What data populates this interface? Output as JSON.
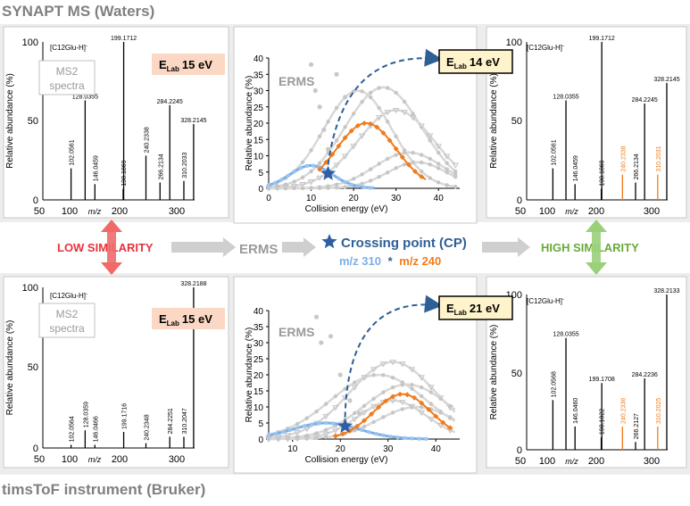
{
  "top_title": "SYNAPT MS (Waters)",
  "bottom_title": "timsToF instrument (Bruker)",
  "colors": {
    "gray_bg": "#ededed",
    "panel_border": "#c8c8c8",
    "orange": "#f07c1c",
    "blue": "#7ab0e8",
    "star": "#2e5fa3",
    "red": "#e8323c",
    "green": "#6aaa3a",
    "elab_pink": "#fbd8c4",
    "elab_yellow": "#fff3cc",
    "dark_blue": "#2e5f95"
  },
  "middle_row": {
    "low_similarity": "LOW SIMILARITY",
    "erms": "ERMS",
    "crossing_point": "Crossing point (CP)",
    "mz_310": "m/z 310",
    "star_sep": "*",
    "mz_240": "m/z 240",
    "high_similarity": "HIGH SIMILARITY"
  },
  "ms2_label": [
    "MS2",
    "spectra"
  ],
  "ylabel_rel": "Relative abundance (%)",
  "xlabel_mz": "m/z",
  "xlabel_ce": "Collision energy (eV)",
  "erms_label": "ERMS",
  "spectra": {
    "top_left": {
      "precursor": "[C12Glu-H]",
      "precursor_sup": "-",
      "elab_prefix": "E",
      "elab_sub": "Lab",
      "elab_value": "15 eV",
      "y_ticks": [
        "100",
        "50",
        "0"
      ],
      "x_ticks": [
        "50",
        "100",
        "200",
        "300"
      ],
      "peaks": [
        {
          "mz": 102.0561,
          "label": "102.0561",
          "rel": 20
        },
        {
          "mz": 128.0355,
          "label": "128.0355",
          "rel": 63
        },
        {
          "mz": 146.0459,
          "label": "146.0459",
          "rel": 10
        },
        {
          "mz": 198.1869,
          "label": "198.1869",
          "rel": 7
        },
        {
          "mz": 199.1712,
          "label": "199.1712",
          "rel": 100
        },
        {
          "mz": 240.2338,
          "label": "240.2338",
          "rel": 28
        },
        {
          "mz": 266.2134,
          "label": "266.2134",
          "rel": 11
        },
        {
          "mz": 284.2245,
          "label": "284.2245",
          "rel": 60
        },
        {
          "mz": 310.2033,
          "label": "310.2033",
          "rel": 12
        },
        {
          "mz": 328.2145,
          "label": "328.2145",
          "rel": 48
        }
      ]
    },
    "top_right": {
      "precursor": "[C12Glu-H]",
      "precursor_sup": "-",
      "y_ticks": [
        "100",
        "50",
        "0"
      ],
      "x_ticks": [
        "50",
        "100",
        "200",
        "300"
      ],
      "peaks": [
        {
          "mz": 102.0561,
          "label": "102.0561",
          "rel": 20
        },
        {
          "mz": 128.0355,
          "label": "128.0355",
          "rel": 63
        },
        {
          "mz": 146.0459,
          "label": "146.0459",
          "rel": 10
        },
        {
          "mz": 198.1869,
          "label": "198.1869",
          "rel": 7
        },
        {
          "mz": 199.1712,
          "label": "199.1712",
          "rel": 100
        },
        {
          "mz": 240.2338,
          "label": "240.2338",
          "rel": 16,
          "orange": true
        },
        {
          "mz": 266.2134,
          "label": "266.2134",
          "rel": 11
        },
        {
          "mz": 284.2245,
          "label": "284.2245",
          "rel": 61
        },
        {
          "mz": 310.2031,
          "label": "310.2031",
          "rel": 16,
          "orange": true
        },
        {
          "mz": 328.2145,
          "label": "328.2145",
          "rel": 74
        }
      ]
    },
    "bottom_left": {
      "precursor": "[C12Glu-H]",
      "precursor_sup": "-",
      "elab_prefix": "E",
      "elab_sub": "Lab",
      "elab_value": "15 eV",
      "y_ticks": [
        "100",
        "50",
        "0"
      ],
      "x_ticks": [
        "50",
        "100",
        "200",
        "300"
      ],
      "peaks": [
        {
          "mz": 102.0564,
          "label": "102.0564",
          "rel": 2
        },
        {
          "mz": 128.0359,
          "label": "128.0359",
          "rel": 11
        },
        {
          "mz": 146.0466,
          "label": "146.0466",
          "rel": 2
        },
        {
          "mz": 199.1716,
          "label": "199.1716",
          "rel": 10
        },
        {
          "mz": 240.2348,
          "label": "240.2348",
          "rel": 3
        },
        {
          "mz": 284.2251,
          "label": "284.2251",
          "rel": 7
        },
        {
          "mz": 310.2047,
          "label": "310.2047",
          "rel": 7
        },
        {
          "mz": 328.2188,
          "label": "328.2188",
          "rel": 100
        }
      ]
    },
    "bottom_right": {
      "precursor": "[C12Glu-H]",
      "precursor_sup": "-",
      "y_ticks": [
        "100",
        "50",
        "0"
      ],
      "x_ticks": [
        "50",
        "100",
        "200",
        "300"
      ],
      "peaks": [
        {
          "mz": 102.0568,
          "label": "102.0568",
          "rel": 32
        },
        {
          "mz": 128.0355,
          "label": "128.0355",
          "rel": 72
        },
        {
          "mz": 146.046,
          "label": "146.0460",
          "rel": 15
        },
        {
          "mz": 198.1022,
          "label": "198.1022",
          "rel": 8
        },
        {
          "mz": 199.1708,
          "label": "199.1708",
          "rel": 43
        },
        {
          "mz": 240.2336,
          "label": "240.2336",
          "rel": 15,
          "orange": true
        },
        {
          "mz": 266.2127,
          "label": "266.2127",
          "rel": 5
        },
        {
          "mz": 284.2236,
          "label": "284.2236",
          "rel": 46
        },
        {
          "mz": 310.2025,
          "label": "310.2025",
          "rel": 15,
          "orange": true
        },
        {
          "mz": 328.2133,
          "label": "328.2133",
          "rel": 100
        }
      ]
    }
  },
  "erms": {
    "top": {
      "elab_prefix": "E",
      "elab_sub": "Lab",
      "elab_value": "14 eV",
      "x_ticks": [
        "0",
        "10",
        "20",
        "30",
        "40"
      ],
      "y_ticks": [
        "0",
        "5",
        "10",
        "15",
        "20",
        "25",
        "30",
        "35",
        "40"
      ],
      "x_range": [
        0,
        45
      ],
      "y_range": [
        0,
        40
      ],
      "cp": {
        "x": 14,
        "y": 4.5
      },
      "blue_curve": {
        "center": 10,
        "width": 5,
        "height": 7
      },
      "orange_curve": {
        "center": 23,
        "width": 7,
        "height": 20,
        "start": 12,
        "end": 37
      },
      "gray_curves": [
        {
          "center": 21,
          "width": 8,
          "height": 30,
          "shape": "dot"
        },
        {
          "center": 27,
          "width": 9,
          "height": 31,
          "shape": "dot"
        },
        {
          "center": 30,
          "width": 9,
          "height": 24,
          "shape": "tri"
        },
        {
          "center": 33,
          "width": 8,
          "height": 11,
          "shape": "dot"
        },
        {
          "center": 35,
          "width": 7,
          "height": 8,
          "shape": "dot"
        }
      ],
      "outlier_points": [
        [
          10,
          38
        ],
        [
          11,
          30
        ],
        [
          12,
          25
        ],
        [
          13,
          18
        ],
        [
          14,
          12
        ],
        [
          16,
          35
        ],
        [
          18,
          28
        ]
      ]
    },
    "bottom": {
      "elab_prefix": "E",
      "elab_sub": "Lab",
      "elab_value": "21 eV",
      "x_ticks": [
        "10",
        "20",
        "30",
        "40"
      ],
      "y_ticks": [
        "0",
        "5",
        "10",
        "15",
        "20",
        "25",
        "30",
        "35",
        "40"
      ],
      "x_range": [
        5,
        45
      ],
      "y_range": [
        0,
        40
      ],
      "cp": {
        "x": 21,
        "y": 4
      },
      "blue_curve": {
        "center": 17,
        "width": 7,
        "height": 5
      },
      "orange_curve": {
        "center": 33,
        "width": 6,
        "height": 14,
        "start": 19,
        "end": 43
      },
      "gray_curves": [
        {
          "center": 28,
          "width": 10,
          "height": 20,
          "shape": "dot"
        },
        {
          "center": 31,
          "width": 9,
          "height": 24,
          "shape": "tri"
        },
        {
          "center": 34,
          "width": 9,
          "height": 17,
          "shape": "dot"
        },
        {
          "center": 31,
          "width": 7,
          "height": 12,
          "shape": "tri"
        },
        {
          "center": 36,
          "width": 8,
          "height": 10,
          "shape": "dot"
        }
      ],
      "outlier_points": [
        [
          15,
          38
        ],
        [
          16,
          30
        ],
        [
          18,
          32
        ],
        [
          20,
          20
        ],
        [
          22,
          12
        ],
        [
          24,
          8
        ]
      ]
    }
  }
}
